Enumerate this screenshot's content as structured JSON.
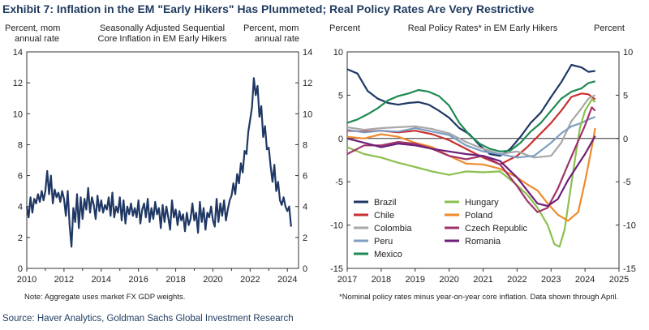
{
  "exhibit_title": "Exhibit 7: Inflation in the EM \"Early Hikers\" Has Plummeted; Real Policy Rates Are Very Restrictive",
  "source": "Source: Haver Analytics, Goldman Sachs Global Investment Research",
  "chart_data": [
    {
      "type": "line",
      "title": "Seasonally Adjusted Sequential Core Inflation in EM Early Hikers",
      "left_axis_label": "Percent, mom annual rate",
      "right_axis_label": "Percent, mom annual rate",
      "note": "Note: Aggregate uses market FX GDP weights.",
      "xlim": [
        2010,
        2024.6
      ],
      "ylim": [
        0,
        14
      ],
      "x_ticks": [
        2010,
        2012,
        2014,
        2016,
        2018,
        2020,
        2022,
        2024
      ],
      "x_tick_labels": [
        "2010",
        "2012",
        "2014",
        "2016",
        "2018",
        "2020",
        "2022",
        "2024"
      ],
      "y_ticks": [
        0,
        2,
        4,
        6,
        8,
        10,
        12,
        14
      ],
      "y_tick_labels": [
        "0",
        "2",
        "4",
        "6",
        "8",
        "10",
        "12",
        "14"
      ],
      "series": [
        {
          "name": "EM Early Hikers core inflation",
          "color": "#1f3864",
          "x": [
            2010.0,
            2010.1,
            2010.2,
            2010.3,
            2010.4,
            2010.5,
            2010.6,
            2010.7,
            2010.8,
            2010.9,
            2011.0,
            2011.1,
            2011.2,
            2011.3,
            2011.4,
            2011.5,
            2011.6,
            2011.7,
            2011.8,
            2011.9,
            2012.0,
            2012.1,
            2012.2,
            2012.3,
            2012.4,
            2012.5,
            2012.6,
            2012.7,
            2012.8,
            2012.9,
            2013.0,
            2013.1,
            2013.2,
            2013.3,
            2013.4,
            2013.5,
            2013.6,
            2013.7,
            2013.8,
            2013.9,
            2014.0,
            2014.1,
            2014.2,
            2014.3,
            2014.4,
            2014.5,
            2014.6,
            2014.7,
            2014.8,
            2014.9,
            2015.0,
            2015.1,
            2015.2,
            2015.3,
            2015.4,
            2015.5,
            2015.6,
            2015.7,
            2015.8,
            2015.9,
            2016.0,
            2016.1,
            2016.2,
            2016.3,
            2016.4,
            2016.5,
            2016.6,
            2016.7,
            2016.8,
            2016.9,
            2017.0,
            2017.1,
            2017.2,
            2017.3,
            2017.4,
            2017.5,
            2017.6,
            2017.7,
            2017.8,
            2017.9,
            2018.0,
            2018.1,
            2018.2,
            2018.3,
            2018.4,
            2018.5,
            2018.6,
            2018.7,
            2018.8,
            2018.9,
            2019.0,
            2019.1,
            2019.2,
            2019.3,
            2019.4,
            2019.5,
            2019.6,
            2019.7,
            2019.8,
            2019.9,
            2020.0,
            2020.1,
            2020.2,
            2020.3,
            2020.4,
            2020.5,
            2020.6,
            2020.7,
            2020.8,
            2020.9,
            2021.0,
            2021.1,
            2021.2,
            2021.3,
            2021.4,
            2021.5,
            2021.6,
            2021.7,
            2021.8,
            2021.9,
            2022.0,
            2022.1,
            2022.2,
            2022.3,
            2022.4,
            2022.5,
            2022.6,
            2022.7,
            2022.8,
            2022.9,
            2023.0,
            2023.1,
            2023.2,
            2023.3,
            2023.4,
            2023.5,
            2023.6,
            2023.7,
            2023.8,
            2023.9,
            2024.0,
            2024.1,
            2024.2
          ],
          "values": [
            4.0,
            3.3,
            4.6,
            3.6,
            4.5,
            4.2,
            4.8,
            4.3,
            5.0,
            4.4,
            5.0,
            6.3,
            4.8,
            6.0,
            4.2,
            5.1,
            4.6,
            4.9,
            4.3,
            5.0,
            4.5,
            3.4,
            5.0,
            2.8,
            1.4,
            3.9,
            3.0,
            4.8,
            2.6,
            4.6,
            3.2,
            4.5,
            3.8,
            5.2,
            3.6,
            4.6,
            4.1,
            3.2,
            4.7,
            3.7,
            4.4,
            3.6,
            4.1,
            3.8,
            4.6,
            3.4,
            4.9,
            3.3,
            4.0,
            3.6,
            4.6,
            3.1,
            4.4,
            2.9,
            4.0,
            3.5,
            4.2,
            3.4,
            3.9,
            3.3,
            4.4,
            2.9,
            3.8,
            4.2,
            3.3,
            4.5,
            3.0,
            3.9,
            3.2,
            4.3,
            3.5,
            3.9,
            2.6,
            4.1,
            3.0,
            4.0,
            3.3,
            2.5,
            4.4,
            3.3,
            3.8,
            2.8,
            3.7,
            3.1,
            3.5,
            2.4,
            3.6,
            2.8,
            3.2,
            4.2,
            3.1,
            3.6,
            2.3,
            4.3,
            3.0,
            3.9,
            2.5,
            3.6,
            3.3,
            4.0,
            3.1,
            2.7,
            4.5,
            3.0,
            4.2,
            3.4,
            4.4,
            3.1,
            3.8,
            4.4,
            4.7,
            5.5,
            4.8,
            6.1,
            5.5,
            6.8,
            6.2,
            7.6,
            7.4,
            8.8,
            9.6,
            10.4,
            12.3,
            11.2,
            11.8,
            9.8,
            10.5,
            8.5,
            9.2,
            7.7,
            7.8,
            6.6,
            5.6,
            6.7,
            5.0,
            5.6,
            4.4,
            4.1,
            4.6,
            4.0,
            3.7,
            4.0,
            2.7
          ]
        }
      ]
    },
    {
      "type": "line",
      "title": "Real Policy Rates* in EM Early Hikers",
      "left_axis_label": "Percent",
      "right_axis_label": "Percent",
      "note": "*Nominal policy rates minus year-on-year core inflation. Data shown through April.",
      "xlim": [
        2017,
        2025
      ],
      "ylim": [
        -15,
        10
      ],
      "x_ticks": [
        2017,
        2018,
        2019,
        2020,
        2021,
        2022,
        2023,
        2024,
        2025
      ],
      "x_tick_labels": [
        "2017",
        "2018",
        "2019",
        "2020",
        "2021",
        "2022",
        "2023",
        "2024",
        "2025"
      ],
      "y_ticks": [
        -15,
        -10,
        -5,
        0,
        5,
        10
      ],
      "y_tick_labels": [
        "-15",
        "-10",
        "-5",
        "0",
        "5",
        "10"
      ],
      "series": [
        {
          "name": "Brazil",
          "color": "#1f3864",
          "x": [
            2017.0,
            2017.3,
            2017.6,
            2017.9,
            2018.2,
            2018.5,
            2018.8,
            2019.1,
            2019.4,
            2019.7,
            2020.0,
            2020.3,
            2020.6,
            2020.9,
            2021.2,
            2021.5,
            2021.8,
            2022.1,
            2022.4,
            2022.7,
            2023.0,
            2023.3,
            2023.6,
            2023.9,
            2024.1,
            2024.3
          ],
          "values": [
            8.0,
            7.5,
            5.5,
            4.6,
            4.1,
            3.9,
            4.1,
            4.2,
            3.9,
            3.2,
            2.4,
            1.2,
            0.5,
            -0.8,
            -1.8,
            -2.0,
            -1.2,
            0.2,
            1.8,
            3.0,
            4.8,
            6.5,
            8.5,
            8.2,
            7.7,
            7.8
          ]
        },
        {
          "name": "Chile",
          "color": "#c8312f",
          "x": [
            2017.0,
            2017.5,
            2018.0,
            2018.5,
            2019.0,
            2019.5,
            2020.0,
            2020.5,
            2021.0,
            2021.5,
            2022.0,
            2022.3,
            2022.6,
            2023.0,
            2023.3,
            2023.6,
            2023.9,
            2024.1,
            2024.3
          ],
          "values": [
            0.9,
            0.8,
            0.9,
            0.7,
            0.9,
            0.5,
            -0.2,
            -1.2,
            -2.2,
            -3.0,
            -2.0,
            -1.0,
            0.2,
            1.8,
            3.2,
            4.8,
            5.2,
            5.1,
            4.5
          ]
        },
        {
          "name": "Colombia",
          "color": "#a8a8a8",
          "x": [
            2017.0,
            2017.5,
            2018.0,
            2018.5,
            2019.0,
            2019.5,
            2020.0,
            2020.5,
            2021.0,
            2021.5,
            2022.0,
            2022.5,
            2023.0,
            2023.3,
            2023.6,
            2023.9,
            2024.1,
            2024.3
          ],
          "values": [
            1.3,
            1.0,
            1.2,
            1.3,
            1.4,
            1.1,
            0.6,
            -0.4,
            -1.2,
            -1.8,
            -1.5,
            -2.2,
            -2.0,
            -0.5,
            2.0,
            3.5,
            4.6,
            5.0
          ]
        },
        {
          "name": "Peru",
          "color": "#7f9ec4",
          "x": [
            2017.0,
            2017.5,
            2018.0,
            2018.5,
            2019.0,
            2019.5,
            2020.0,
            2020.5,
            2021.0,
            2021.5,
            2022.0,
            2022.5,
            2023.0,
            2023.3,
            2023.6,
            2023.9,
            2024.1,
            2024.3
          ],
          "values": [
            1.0,
            0.7,
            0.9,
            0.8,
            1.2,
            0.8,
            0.4,
            -0.8,
            -1.5,
            -1.8,
            -2.2,
            -2.0,
            -0.5,
            0.6,
            1.4,
            1.8,
            2.2,
            2.5
          ]
        },
        {
          "name": "Mexico",
          "color": "#1e8a54",
          "x": [
            2017.0,
            2017.3,
            2017.6,
            2017.9,
            2018.2,
            2018.5,
            2018.8,
            2019.1,
            2019.4,
            2019.7,
            2020.0,
            2020.3,
            2020.6,
            2020.9,
            2021.2,
            2021.5,
            2021.8,
            2022.1,
            2022.4,
            2022.7,
            2023.0,
            2023.3,
            2023.6,
            2023.9,
            2024.1,
            2024.3
          ],
          "values": [
            1.8,
            2.2,
            2.8,
            3.5,
            4.4,
            4.9,
            5.2,
            5.6,
            5.4,
            4.9,
            3.8,
            1.8,
            0.4,
            -0.6,
            -1.2,
            -1.5,
            -1.4,
            -0.5,
            0.8,
            1.8,
            3.2,
            4.6,
            5.4,
            5.8,
            6.4,
            6.6
          ]
        },
        {
          "name": "Hungary",
          "color": "#8cc04f",
          "x": [
            2017.0,
            2017.5,
            2018.0,
            2018.5,
            2019.0,
            2019.5,
            2020.0,
            2020.5,
            2021.0,
            2021.5,
            2022.0,
            2022.3,
            2022.6,
            2022.9,
            2023.1,
            2023.25,
            2023.4,
            2023.55,
            2023.7,
            2023.85,
            2024.0,
            2024.2,
            2024.3
          ],
          "values": [
            -1.0,
            -1.8,
            -2.2,
            -2.8,
            -3.3,
            -3.8,
            -4.2,
            -3.8,
            -3.9,
            -3.8,
            -5.4,
            -6.5,
            -8.0,
            -10.0,
            -12.2,
            -12.5,
            -10.5,
            -6.5,
            -2.5,
            1.2,
            3.2,
            4.5,
            4.2
          ]
        },
        {
          "name": "Poland",
          "color": "#f08a2c",
          "x": [
            2017.0,
            2017.5,
            2018.0,
            2018.5,
            2019.0,
            2019.5,
            2020.0,
            2020.5,
            2021.0,
            2021.5,
            2022.0,
            2022.3,
            2022.6,
            2022.9,
            2023.2,
            2023.5,
            2023.8,
            2024.0,
            2024.2,
            2024.3
          ],
          "values": [
            0.2,
            0.0,
            0.5,
            0.2,
            -0.5,
            -1.0,
            -2.0,
            -2.9,
            -3.0,
            -3.5,
            -4.5,
            -5.3,
            -6.0,
            -7.5,
            -8.8,
            -9.5,
            -8.5,
            -5.0,
            -1.0,
            1.2
          ]
        },
        {
          "name": "Czech Republic",
          "color": "#a0336b",
          "x": [
            2017.0,
            2017.5,
            2018.0,
            2018.5,
            2019.0,
            2019.5,
            2020.0,
            2020.5,
            2021.0,
            2021.5,
            2022.0,
            2022.3,
            2022.6,
            2022.9,
            2023.2,
            2023.5,
            2023.8,
            2024.0,
            2024.2,
            2024.3
          ],
          "values": [
            -1.8,
            -0.8,
            -0.8,
            -0.4,
            -0.6,
            -1.2,
            -2.0,
            -2.4,
            -2.0,
            -3.0,
            -5.5,
            -7.2,
            -8.5,
            -8.0,
            -5.8,
            -3.0,
            -0.3,
            1.5,
            3.6,
            3.2
          ]
        },
        {
          "name": "Romania",
          "color": "#6e1f78",
          "x": [
            2017.0,
            2017.5,
            2018.0,
            2018.5,
            2019.0,
            2019.5,
            2020.0,
            2020.5,
            2021.0,
            2021.5,
            2022.0,
            2022.3,
            2022.6,
            2022.9,
            2023.2,
            2023.5,
            2023.8,
            2024.0,
            2024.2,
            2024.3
          ],
          "values": [
            0.0,
            -0.5,
            -1.0,
            -0.6,
            -0.8,
            -1.2,
            -1.5,
            -1.8,
            -2.0,
            -2.6,
            -4.5,
            -6.0,
            -7.5,
            -7.8,
            -7.0,
            -4.8,
            -3.0,
            -1.8,
            -0.4,
            0.3
          ]
        }
      ],
      "legend": {
        "col1": [
          "Brazil",
          "Chile",
          "Colombia",
          "Peru",
          "Mexico"
        ],
        "col2": [
          "Hungary",
          "Poland",
          "Czech Republic",
          "Romania"
        ]
      }
    }
  ]
}
